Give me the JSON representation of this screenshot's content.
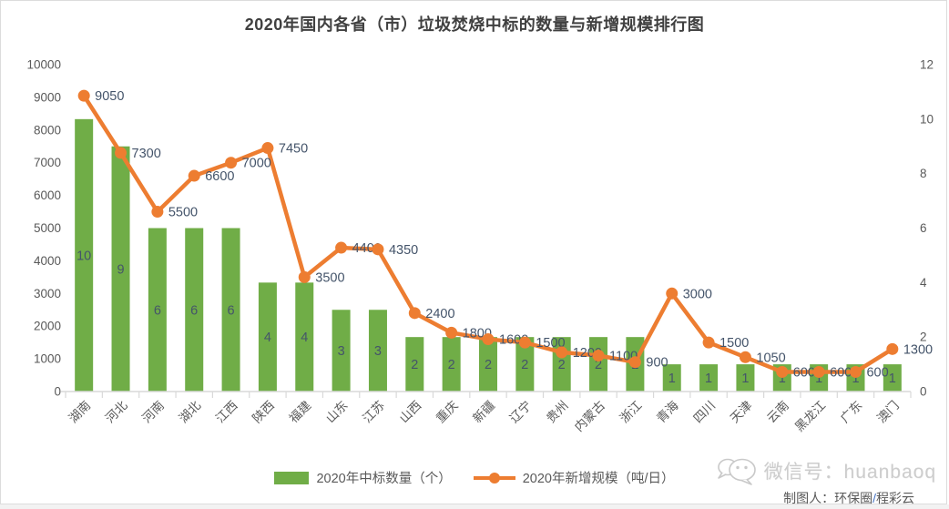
{
  "title": "2020年国内各省（市）垃圾焚烧中标的数量与新增规模排行图",
  "legend": {
    "bars": "2020年中标数量（个）",
    "line": "2020年新增规模（吨/日）"
  },
  "watermark": {
    "wechat_label": "微信号：huanbaoq",
    "credit_prefix": "制图人：环保圈",
    "credit_slash": "/",
    "credit_suffix": "程彩云"
  },
  "colors": {
    "bar": "#70AD47",
    "line": "#ED7D31",
    "axis_text": "#595959",
    "data_label": "#44546A",
    "title_text": "#404040",
    "axis_line": "#D9D9D9"
  },
  "chart_data": {
    "type": "bar+line",
    "title": "2020年国内各省（市）垃圾焚烧中标的数量与新增规模排行图",
    "categories": [
      "湖南",
      "河北",
      "河南",
      "湖北",
      "江西",
      "陕西",
      "福建",
      "山东",
      "江苏",
      "山西",
      "重庆",
      "新疆",
      "辽宁",
      "贵州",
      "内蒙古",
      "浙江",
      "青海",
      "四川",
      "天津",
      "云南",
      "黑龙江",
      "广东",
      "澳门"
    ],
    "series": [
      {
        "name": "2020年中标数量（个）",
        "type": "bar",
        "axis": "right",
        "values": [
          10,
          9,
          6,
          6,
          6,
          4,
          4,
          3,
          3,
          2,
          2,
          2,
          2,
          2,
          2,
          2,
          1,
          1,
          1,
          1,
          1,
          1,
          1
        ]
      },
      {
        "name": "2020年新增规模（吨/日）",
        "type": "line",
        "axis": "left",
        "values": [
          9050,
          7300,
          5500,
          6600,
          7000,
          7450,
          3500,
          4400,
          4350,
          2400,
          1800,
          1600,
          1500,
          1200,
          1100,
          900,
          3000,
          1500,
          1050,
          600,
          600,
          600,
          1300
        ]
      }
    ],
    "left_axis": {
      "min": 0,
      "max": 10000,
      "step": 1000
    },
    "right_axis": {
      "min": 0,
      "max": 12,
      "step": 2
    },
    "grid": false,
    "legend_position": "bottom"
  }
}
